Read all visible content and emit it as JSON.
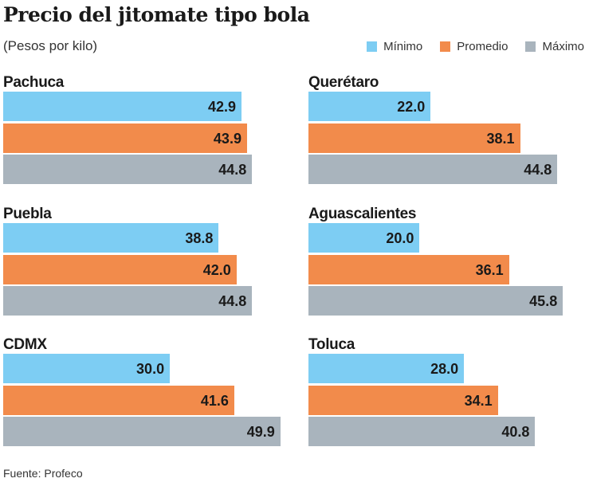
{
  "chart_data": {
    "type": "bar",
    "title": "Precio del jitomate tipo bola",
    "subtitle": "(Pesos por kilo)",
    "legend": [
      "Mínimo",
      "Promedio",
      "Máximo"
    ],
    "colors": [
      "#7dcdf3",
      "#f28b4b",
      "#a9b4bd"
    ],
    "panels": [
      {
        "city": "Pachuca",
        "values": [
          42.9,
          43.9,
          44.8
        ]
      },
      {
        "city": "Querétaro",
        "values": [
          22.0,
          38.1,
          44.8
        ]
      },
      {
        "city": "Puebla",
        "values": [
          38.8,
          42.0,
          44.8
        ]
      },
      {
        "city": "Aguascalientes",
        "values": [
          20.0,
          36.1,
          45.8
        ]
      },
      {
        "city": "CDMX",
        "values": [
          30.0,
          41.6,
          49.9
        ]
      },
      {
        "city": "Toluca",
        "values": [
          28.0,
          34.1,
          40.8
        ]
      }
    ],
    "source": "Fuente: Profeco"
  }
}
